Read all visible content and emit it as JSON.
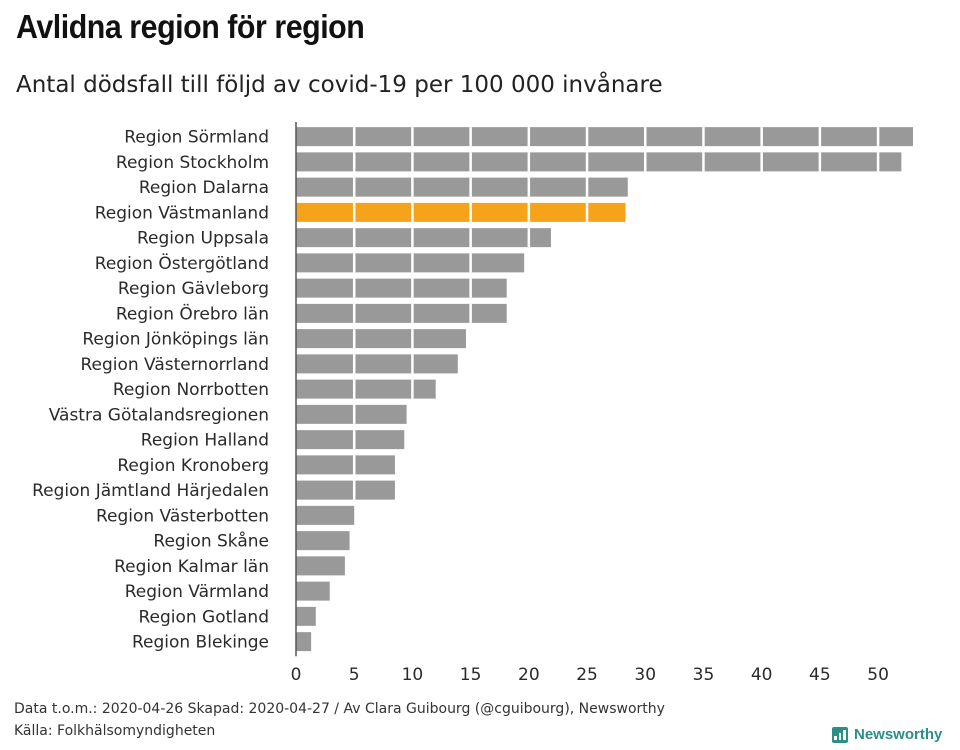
{
  "header": {
    "title": "Avlidna region för region",
    "subtitle": "Antal dödsfall till följd av covid-19 per 100 000 invånare"
  },
  "chart_data": {
    "type": "bar",
    "orientation": "horizontal",
    "categories": [
      "Region Sörmland",
      "Region Stockholm",
      "Region Dalarna",
      "Region Västmanland",
      "Region Uppsala",
      "Region Östergötland",
      "Region Gävleborg",
      "Region Örebro län",
      "Region Jönköpings län",
      "Region Västernorrland",
      "Region Norrbotten",
      "Västra Götalandsregionen",
      "Region Halland",
      "Region Kronoberg",
      "Region Jämtland Härjedalen",
      "Region Västerbotten",
      "Region Skåne",
      "Region Kalmar län",
      "Region Värmland",
      "Region Gotland",
      "Region Blekinge"
    ],
    "values": [
      53.0,
      52.0,
      28.5,
      28.3,
      21.9,
      19.6,
      18.1,
      18.1,
      14.6,
      13.9,
      12.0,
      9.5,
      9.3,
      8.5,
      8.5,
      5.0,
      4.6,
      4.2,
      2.9,
      1.7,
      1.3
    ],
    "highlight": "Region Västmanland",
    "colors": {
      "default": "#999999",
      "highlight": "#f5a31a",
      "axis": "#555555"
    },
    "xlim": [
      0,
      53
    ],
    "xticks": [
      0,
      5,
      10,
      15,
      20,
      25,
      30,
      35,
      40,
      45,
      50
    ],
    "grid": false
  },
  "footer": {
    "line1": "Data t.o.m.: 2020-04-26 Skapad: 2020-04-27 / Av Clara Guibourg (@cguibourg), Newsworthy",
    "line2": "Källa: Folkhälsomyndigheten"
  },
  "brand": {
    "name": "Newsworthy",
    "icon": "bar-chart-icon"
  }
}
